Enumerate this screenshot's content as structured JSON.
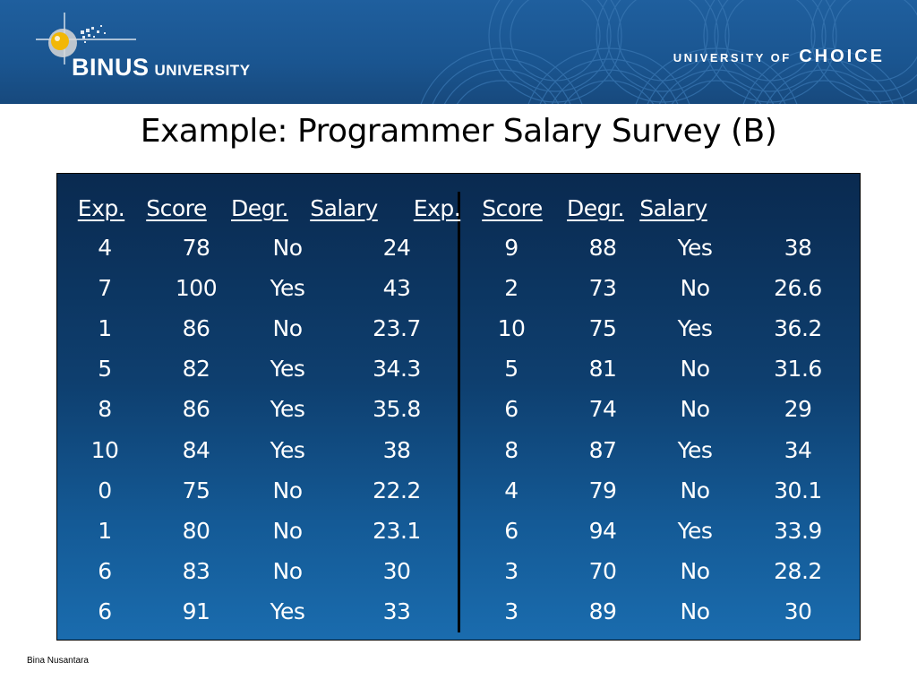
{
  "header": {
    "logo_main": "BINUS",
    "logo_sub": "UNIVERSITY",
    "tagline_small": "UNIVERSITY OF",
    "tagline_big": "CHOICE"
  },
  "title": "Example:  Programmer Salary Survey (B)",
  "table": {
    "headers": [
      "Exp.",
      "Score",
      "Degr.",
      "Salary",
      "Exp.",
      "Score",
      "Degr.",
      "Salary"
    ],
    "rows": [
      [
        "4",
        "78",
        "No",
        "24",
        "9",
        "88",
        "Yes",
        "38"
      ],
      [
        "7",
        "100",
        "Yes",
        "43",
        "2",
        "73",
        "No",
        "26.6"
      ],
      [
        "1",
        "86",
        "No",
        "23.7",
        "10",
        "75",
        "Yes",
        "36.2"
      ],
      [
        "5",
        "82",
        "Yes",
        "34.3",
        "5",
        "81",
        "No",
        "31.6"
      ],
      [
        "8",
        "86",
        "Yes",
        "35.8",
        "6",
        "74",
        "No",
        "29"
      ],
      [
        "10",
        "84",
        "Yes",
        "38",
        "8",
        "87",
        "Yes",
        "34"
      ],
      [
        "0",
        "75",
        "No",
        "22.2",
        "4",
        "79",
        "No",
        "30.1"
      ],
      [
        "1",
        "80",
        "No",
        "23.1",
        "6",
        "94",
        "Yes",
        "33.9"
      ],
      [
        "6",
        "83",
        "No",
        "30",
        "3",
        "70",
        "No",
        "28.2"
      ],
      [
        "6",
        "91",
        "Yes",
        "33",
        "3",
        "89",
        "No",
        "30"
      ]
    ]
  },
  "footer": "Bina Nusantara",
  "colors": {
    "banner": "#1f5f9e",
    "table_bg_top": "#0a2a50",
    "table_bg_bottom": "#1a6cae",
    "text_on_dark": "#ffffff"
  }
}
